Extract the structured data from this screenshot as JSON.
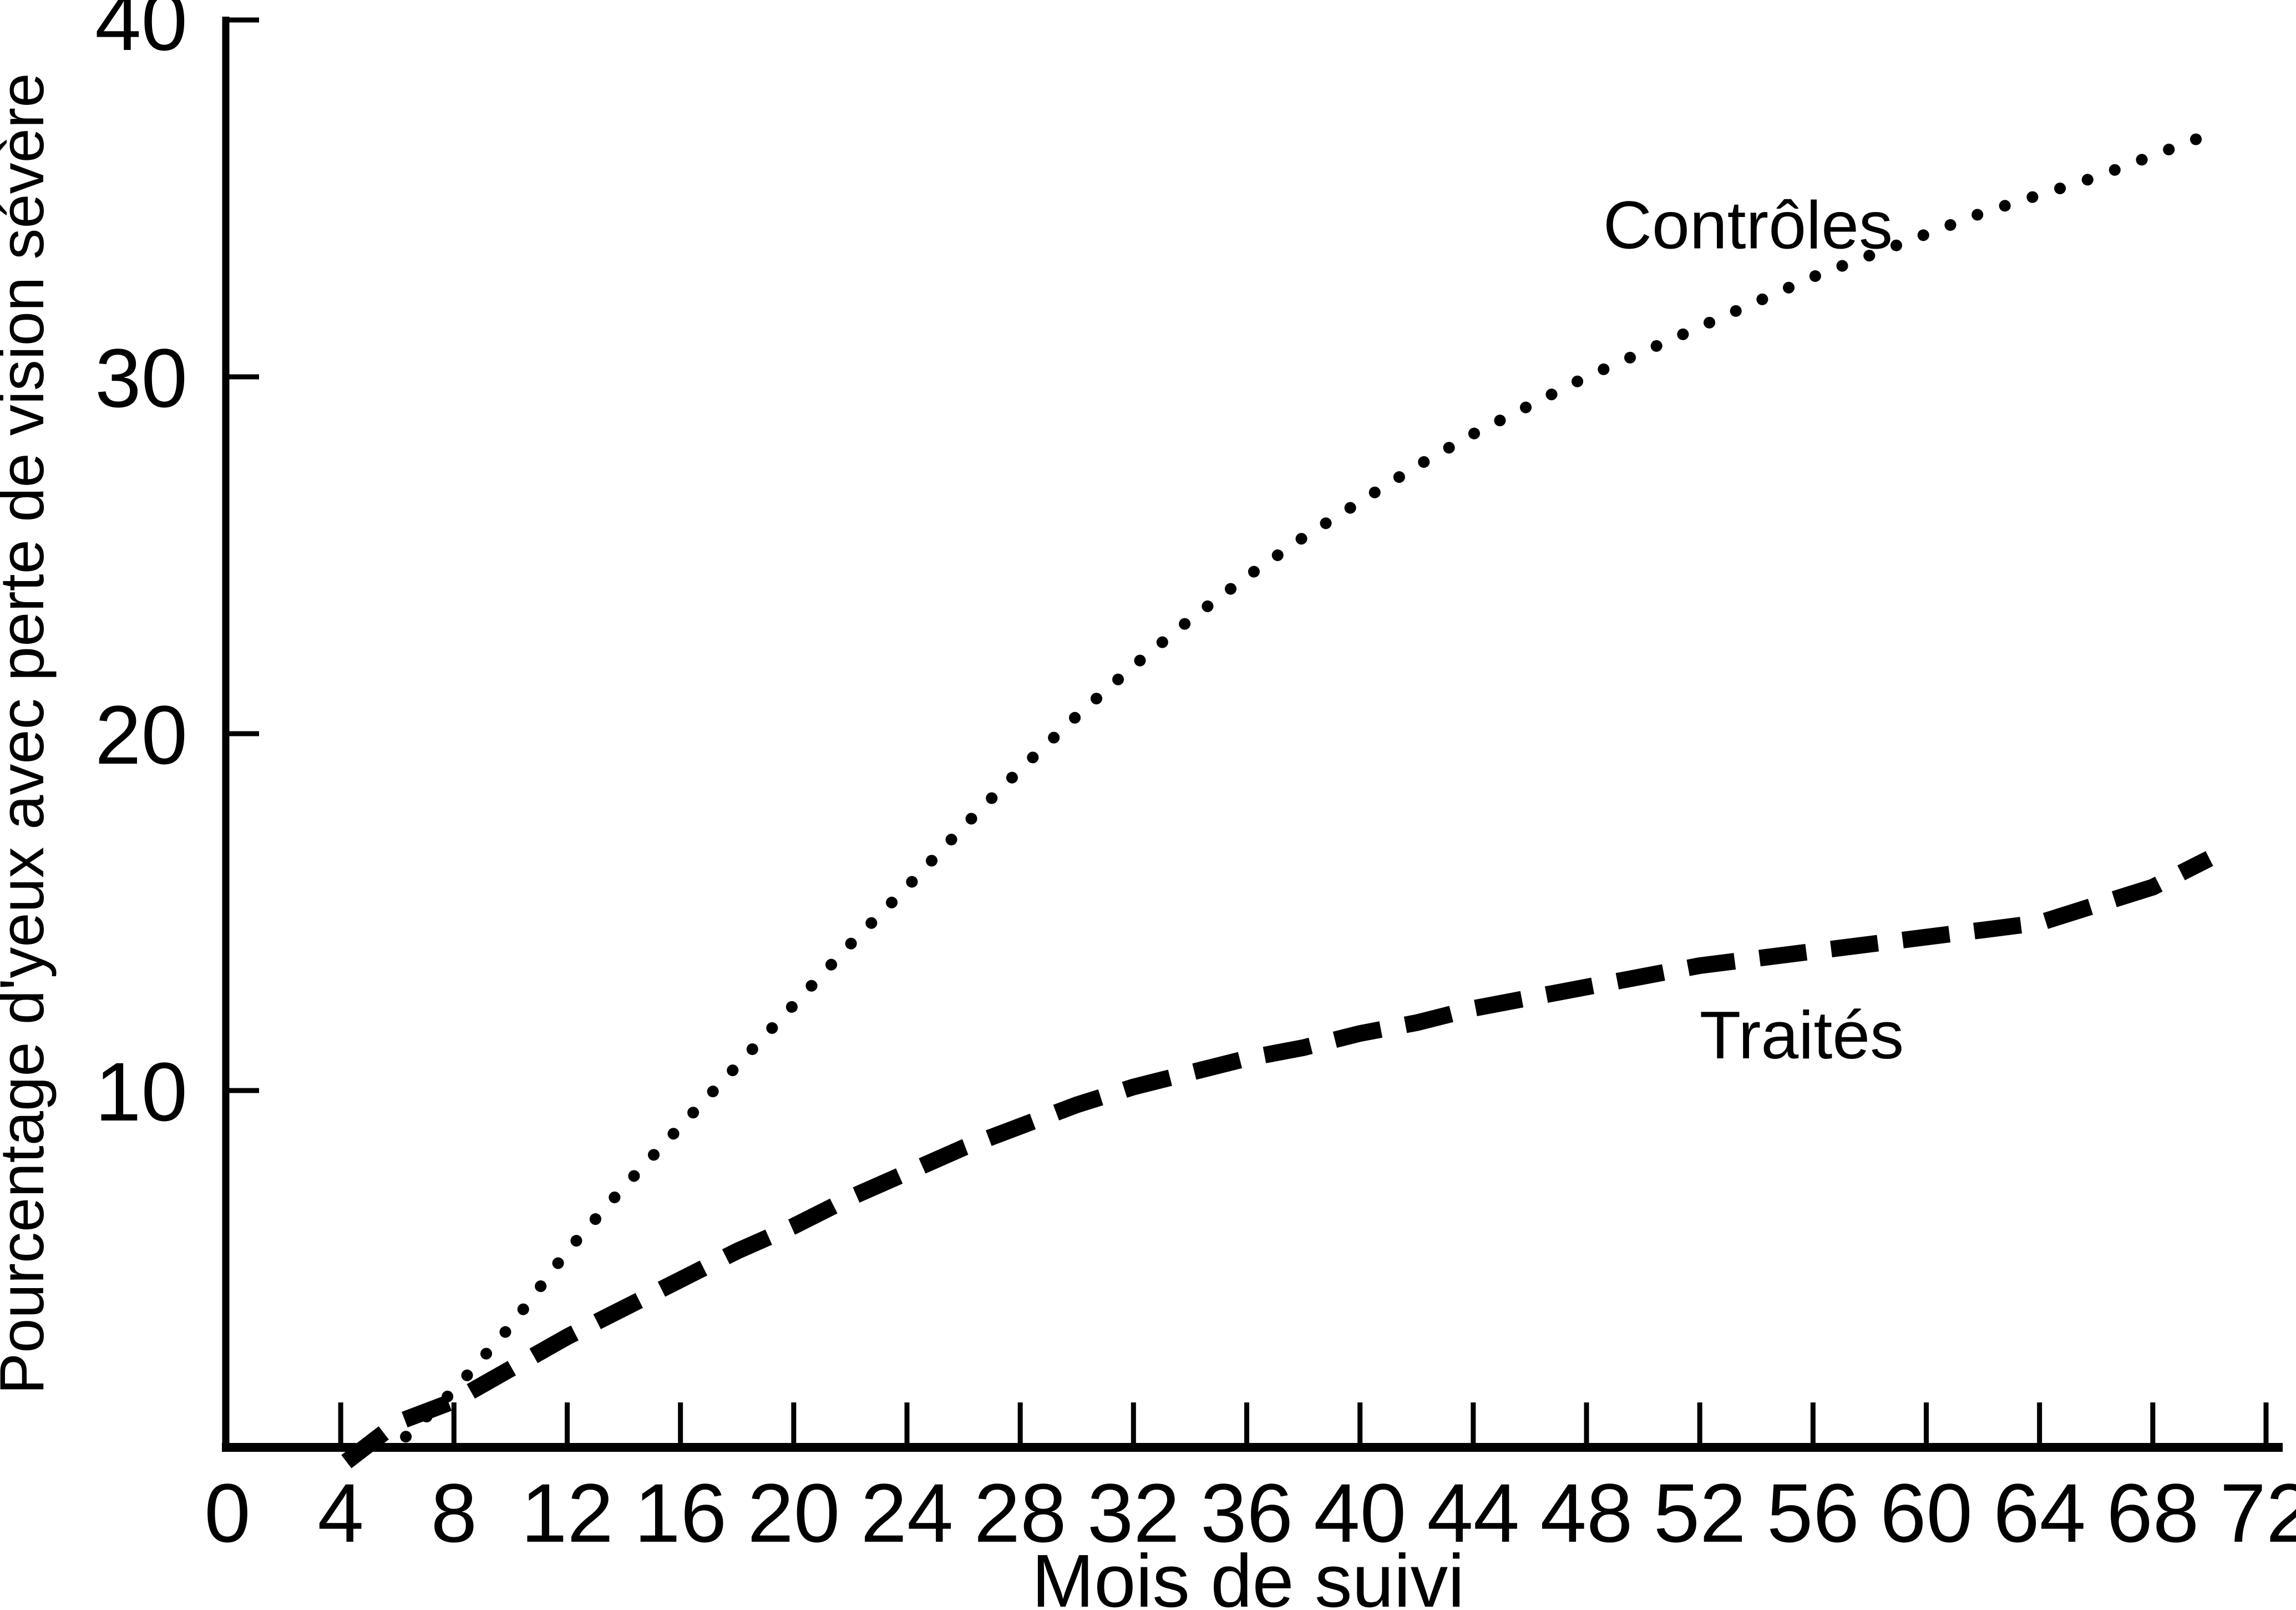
{
  "chart_data": {
    "type": "line",
    "title": "",
    "xlabel": "Mois de suivi",
    "ylabel": "Pourcentage d'yeux avec perte de vision sévère",
    "xlim": [
      0,
      72
    ],
    "ylim": [
      0,
      40
    ],
    "grid": false,
    "legend_position": "labels-next-to-curves",
    "line_color": "#000000",
    "x_ticks": [
      0,
      4,
      8,
      12,
      16,
      20,
      24,
      28,
      32,
      36,
      40,
      44,
      48,
      52,
      56,
      60,
      64,
      68,
      72
    ],
    "y_ticks": [
      10,
      20,
      30,
      40
    ],
    "series": [
      {
        "name": "Contrôles",
        "style": "dotted",
        "color": "#000000",
        "label_pos": {
          "x": 53.7,
          "y": 33.6
        },
        "points": [
          [
            6.3,
            0.3
          ],
          [
            8,
            1.6
          ],
          [
            10,
            3.4
          ],
          [
            12,
            5.5
          ],
          [
            14,
            7.3
          ],
          [
            16,
            9.0
          ],
          [
            18,
            10.7
          ],
          [
            20,
            12.4
          ],
          [
            22,
            14.1
          ],
          [
            24,
            15.7
          ],
          [
            26,
            17.4
          ],
          [
            28,
            19.0
          ],
          [
            30,
            20.5
          ],
          [
            32,
            21.9
          ],
          [
            34,
            23.2
          ],
          [
            36,
            24.4
          ],
          [
            38,
            25.5
          ],
          [
            40,
            26.5
          ],
          [
            42,
            27.5
          ],
          [
            44,
            28.4
          ],
          [
            46,
            29.2
          ],
          [
            48,
            30.0
          ],
          [
            50,
            30.7
          ],
          [
            52,
            31.4
          ],
          [
            54,
            32.1
          ],
          [
            56,
            32.8
          ],
          [
            58,
            33.4
          ],
          [
            60,
            34.0
          ],
          [
            62,
            34.6
          ],
          [
            64,
            35.1
          ],
          [
            66,
            35.6
          ],
          [
            68,
            36.2
          ],
          [
            70,
            36.8
          ]
        ]
      },
      {
        "name": "Traités",
        "style": "dashed",
        "color": "#000000",
        "label_pos": {
          "x": 55.6,
          "y": 10.9
        },
        "points": [
          [
            4.2,
            -0.4
          ],
          [
            6,
            0.7
          ],
          [
            8,
            1.3
          ],
          [
            10,
            2.2
          ],
          [
            12,
            3.1
          ],
          [
            14,
            3.9
          ],
          [
            16,
            4.7
          ],
          [
            18,
            5.5
          ],
          [
            20,
            6.2
          ],
          [
            22,
            7.0
          ],
          [
            24,
            7.7
          ],
          [
            26,
            8.4
          ],
          [
            28,
            9.0
          ],
          [
            30,
            9.6
          ],
          [
            32,
            10.1
          ],
          [
            34,
            10.5
          ],
          [
            36,
            10.9
          ],
          [
            38,
            11.2
          ],
          [
            40,
            11.6
          ],
          [
            42,
            11.9
          ],
          [
            44,
            12.3
          ],
          [
            46,
            12.6
          ],
          [
            48,
            12.9
          ],
          [
            50,
            13.2
          ],
          [
            52,
            13.5
          ],
          [
            54,
            13.7
          ],
          [
            56,
            13.9
          ],
          [
            58,
            14.1
          ],
          [
            60,
            14.3
          ],
          [
            62,
            14.5
          ],
          [
            64,
            14.7
          ],
          [
            66,
            15.2
          ],
          [
            68,
            15.7
          ],
          [
            70,
            16.5
          ]
        ]
      }
    ]
  }
}
